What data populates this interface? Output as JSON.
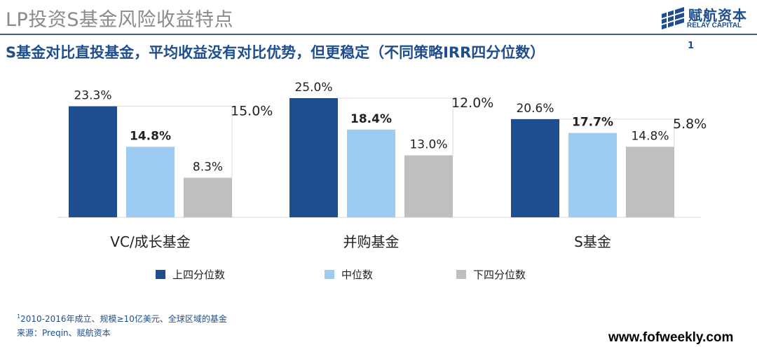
{
  "header": {
    "title": "LP投资S基金风险收益特点",
    "logo_cn": "赋航资本",
    "logo_en": "RELAY CAPITAL"
  },
  "subtitle": {
    "text": "S基金对比直投基金，平均收益没有对比优势，但更稳定（不同策略IRR四分位数）",
    "sup": "1"
  },
  "chart_data": {
    "type": "bar",
    "categories": [
      "VC/成长基金",
      "并购基金",
      "S基金"
    ],
    "series": [
      {
        "name": "上四分位数",
        "color": "#1f4e8f",
        "values": [
          23.3,
          25.0,
          20.6
        ]
      },
      {
        "name": "中位数",
        "color": "#9dcbf2",
        "values": [
          14.8,
          18.4,
          17.7
        ]
      },
      {
        "name": "下四分位数",
        "color": "#bfbfbf",
        "values": [
          8.3,
          13.0,
          14.8
        ]
      }
    ],
    "value_labels": [
      [
        "23.3%",
        "14.8%",
        "8.3%"
      ],
      [
        "25.0%",
        "18.4%",
        "13.0%"
      ],
      [
        "20.6%",
        "17.7%",
        "14.8%"
      ]
    ],
    "spread_labels": [
      "15.0%",
      "12.0%",
      "5.8%"
    ],
    "ylim": [
      0,
      30
    ],
    "legend_position": "bottom",
    "grid": false
  },
  "footnotes": {
    "note_sup": "1",
    "note": "2010-2016年成立、规模≥10亿美元、全球区域的基金",
    "source": "来源：Preqin、赋航资本"
  },
  "watermark": "www.fofweekly.com"
}
